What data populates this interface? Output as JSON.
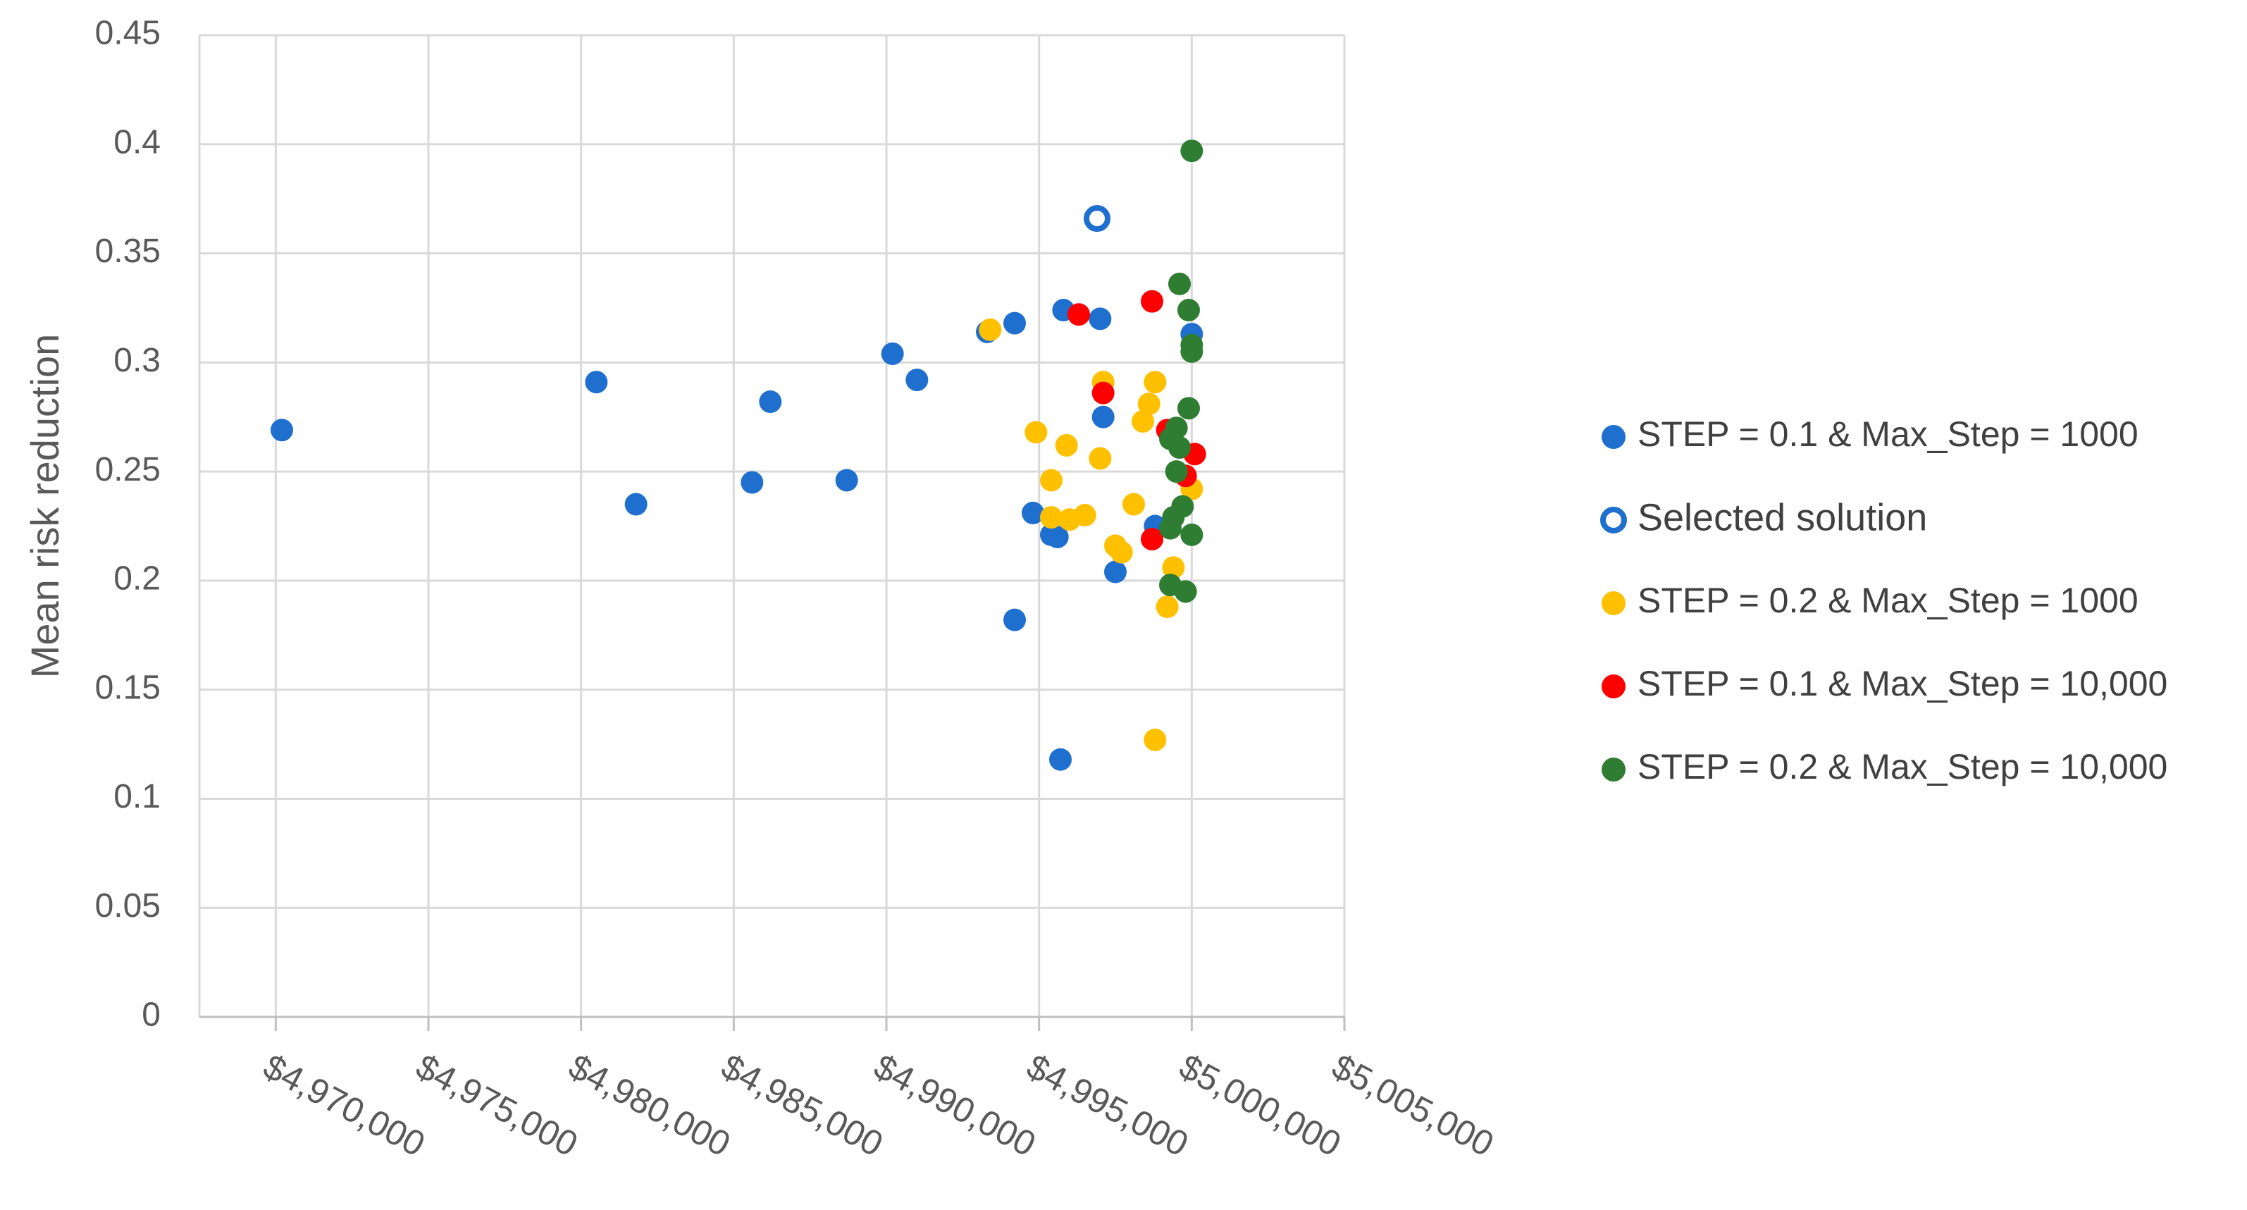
{
  "chart_data": {
    "type": "scatter",
    "title": "",
    "xlabel": "",
    "ylabel": "Mean risk reduction",
    "xlim": [
      4967500,
      5005000
    ],
    "ylim": [
      0,
      0.45
    ],
    "x_ticks": [
      4970000,
      4975000,
      4980000,
      4985000,
      4990000,
      4995000,
      5000000,
      5005000
    ],
    "x_tick_labels": [
      "$4,970,000",
      "$4,975,000",
      "$4,980,000",
      "$4,985,000",
      "$4,990,000",
      "$4,995,000",
      "$5,000,000",
      "$5,005,000"
    ],
    "y_ticks": [
      0,
      0.05,
      0.1,
      0.15,
      0.2,
      0.25,
      0.3,
      0.35,
      0.4,
      0.45
    ],
    "y_tick_labels": [
      "0",
      "0.05",
      "0.1",
      "0.15",
      "0.2",
      "0.25",
      "0.3",
      "0.35",
      "0.4",
      "0.45"
    ],
    "grid": true,
    "legend_position": "right",
    "series": [
      {
        "name": "STEP = 0.1 & Max_Step = 1000",
        "color": "#1f6fce",
        "marker": "filled-circle",
        "points": [
          [
            4970200,
            0.269
          ],
          [
            4980500,
            0.291
          ],
          [
            4981800,
            0.235
          ],
          [
            4985600,
            0.245
          ],
          [
            4986200,
            0.282
          ],
          [
            4988700,
            0.246
          ],
          [
            4990200,
            0.304
          ],
          [
            4991000,
            0.292
          ],
          [
            4993300,
            0.314
          ],
          [
            4994200,
            0.318
          ],
          [
            4994200,
            0.182
          ],
          [
            4994800,
            0.231
          ],
          [
            4995400,
            0.221
          ],
          [
            4995600,
            0.22
          ],
          [
            4995700,
            0.118
          ],
          [
            4995800,
            0.324
          ],
          [
            4997000,
            0.32
          ],
          [
            4997100,
            0.275
          ],
          [
            4997500,
            0.204
          ],
          [
            4998800,
            0.225
          ],
          [
            5000000,
            0.313
          ]
        ]
      },
      {
        "name": "Selected solution",
        "color": "#1f6fce",
        "marker": "hollow-circle",
        "points": [
          [
            4996900,
            0.366
          ]
        ]
      },
      {
        "name": "STEP = 0.2 & Max_Step = 1000",
        "color": "#ffc000",
        "marker": "filled-circle",
        "points": [
          [
            4993400,
            0.315
          ],
          [
            4994900,
            0.268
          ],
          [
            4995400,
            0.246
          ],
          [
            4995400,
            0.229
          ],
          [
            4995900,
            0.262
          ],
          [
            4996000,
            0.228
          ],
          [
            4996500,
            0.23
          ],
          [
            4997000,
            0.256
          ],
          [
            4997100,
            0.291
          ],
          [
            4997500,
            0.216
          ],
          [
            4997700,
            0.213
          ],
          [
            4998100,
            0.235
          ],
          [
            4998400,
            0.273
          ],
          [
            4998600,
            0.281
          ],
          [
            4998800,
            0.291
          ],
          [
            4998800,
            0.127
          ],
          [
            4999200,
            0.188
          ],
          [
            4999400,
            0.206
          ],
          [
            5000000,
            0.242
          ]
        ]
      },
      {
        "name": "STEP = 0.1 & Max_Step = 10,000",
        "color": "#ff0000",
        "marker": "filled-circle",
        "points": [
          [
            4996300,
            0.322
          ],
          [
            4997100,
            0.286
          ],
          [
            4998700,
            0.328
          ],
          [
            4998700,
            0.219
          ],
          [
            4999200,
            0.269
          ],
          [
            4999800,
            0.248
          ],
          [
            5000100,
            0.258
          ]
        ]
      },
      {
        "name": "STEP = 0.2 & Max_Step = 10,000",
        "color": "#2e7d32",
        "marker": "filled-circle",
        "points": [
          [
            5000000,
            0.397
          ],
          [
            4999600,
            0.336
          ],
          [
            4999900,
            0.324
          ],
          [
            5000000,
            0.308
          ],
          [
            5000000,
            0.305
          ],
          [
            4999900,
            0.279
          ],
          [
            4999500,
            0.27
          ],
          [
            4999300,
            0.265
          ],
          [
            4999600,
            0.261
          ],
          [
            4999500,
            0.25
          ],
          [
            4999700,
            0.234
          ],
          [
            4999400,
            0.229
          ],
          [
            4999300,
            0.224
          ],
          [
            5000000,
            0.221
          ],
          [
            4999300,
            0.198
          ],
          [
            4999800,
            0.195
          ]
        ]
      }
    ]
  }
}
